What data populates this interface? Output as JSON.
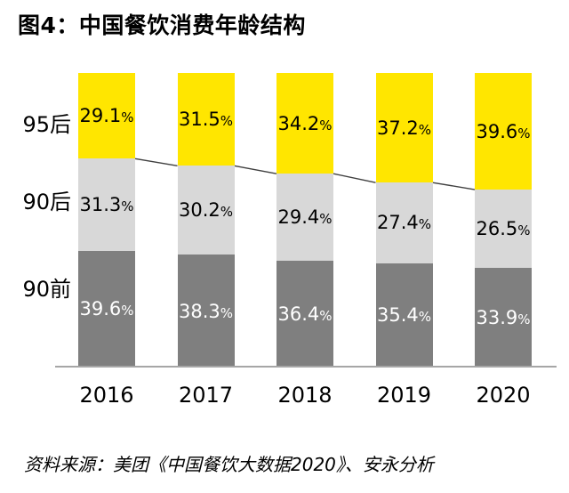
{
  "title": "图4：中国餐饮消费年龄结构",
  "source": "资料来源：美团《中国餐饮大数据2020》、安永分析",
  "chart_data": {
    "type": "bar",
    "stacked": true,
    "unit": "%",
    "title": "图4：中国餐饮消费年龄结构",
    "categories": [
      "2016",
      "2017",
      "2018",
      "2019",
      "2020"
    ],
    "series": [
      {
        "name": "95后",
        "color": "#FFE600",
        "label_color": "#000000",
        "values": [
          29.1,
          31.5,
          34.2,
          37.2,
          39.6
        ]
      },
      {
        "name": "90后",
        "color": "#D8D8D8",
        "label_color": "#000000",
        "values": [
          31.3,
          30.2,
          29.4,
          27.4,
          26.5
        ]
      },
      {
        "name": "90前",
        "color": "#7F7F7F",
        "label_color": "#FFFFFF",
        "values": [
          39.6,
          38.3,
          36.4,
          35.4,
          33.9
        ]
      }
    ],
    "ylim": [
      0,
      100
    ],
    "grid": false,
    "legend_position": "row-labels-left",
    "axis_color": "#A6A6A6",
    "connector_color": "#404040",
    "connector_between": "95后/90后 boundary"
  }
}
